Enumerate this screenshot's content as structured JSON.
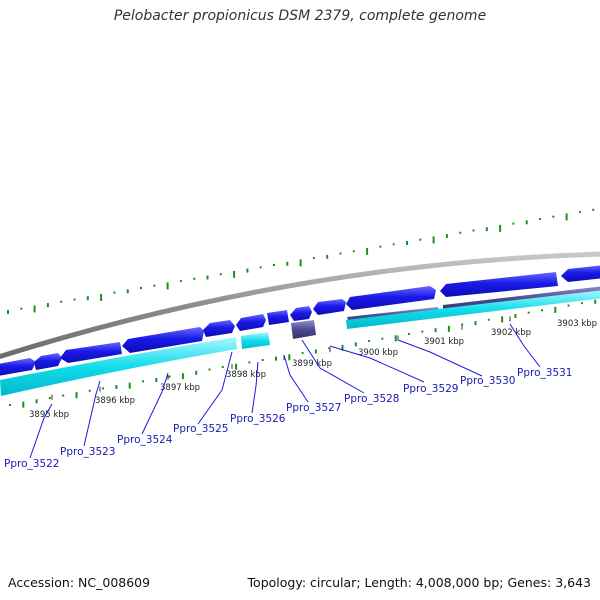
{
  "title": "Pelobacter propionicus DSM 2379, complete genome",
  "footer": {
    "accession_label": "Accession:",
    "accession": "NC_008609",
    "topology_label": "Topology:",
    "topology": "circular",
    "length_label": "Length:",
    "length": "4,008,000 bp",
    "genes_label": "Genes:",
    "genes": "3,643"
  },
  "colors": {
    "backbone": "#8c8c8c",
    "forward_gene": "#1414e6",
    "forward_gene_light": "#5a5aff",
    "reverse_gene": "#4a4a8a",
    "reverse_gene_light": "#8a8ac8",
    "cds_track": "#00d8e8",
    "cds_track_light": "#9af4fa",
    "gc_tick": "#1e8c1e",
    "leader_line": "#1a1ae0",
    "kbp_tick": "#333333"
  },
  "kbp_labels": [
    "3895 kbp",
    "3896 kbp",
    "3897 kbp",
    "3898 kbp",
    "3899 kbp",
    "3900 kbp",
    "3901 kbp",
    "3902 kbp",
    "3903 kbp"
  ],
  "genes": [
    "Ppro_3522",
    "Ppro_3523",
    "Ppro_3524",
    "Ppro_3525",
    "Ppro_3526",
    "Ppro_3527",
    "Ppro_3528",
    "Ppro_3529",
    "Ppro_3530",
    "Ppro_3531"
  ]
}
